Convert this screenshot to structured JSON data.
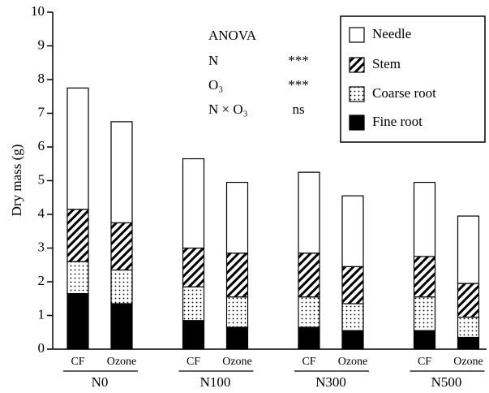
{
  "chart_data": {
    "type": "stacked_bar",
    "y_label": "Dry mass (g)",
    "categories": [
      "CF",
      "Ozone",
      "CF",
      "Ozone",
      "CF",
      "Ozone",
      "CF",
      "Ozone"
    ],
    "groups": [
      "N0",
      "N100",
      "N300",
      "N500"
    ],
    "series": [
      {
        "name": "Fine root",
        "color": "#000000",
        "pattern": "solid",
        "values": [
          1.65,
          1.35,
          0.85,
          0.65,
          0.65,
          0.55,
          0.55,
          0.35
        ]
      },
      {
        "name": "Coarse root",
        "color": "#ffffff",
        "pattern": "dots",
        "values": [
          0.95,
          1.0,
          1.0,
          0.9,
          0.9,
          0.8,
          1.0,
          0.6
        ]
      },
      {
        "name": "Stem",
        "color": "#ffffff",
        "pattern": "hatch",
        "values": [
          1.55,
          1.4,
          1.15,
          1.3,
          1.3,
          1.1,
          1.2,
          1.0
        ]
      },
      {
        "name": "Needle",
        "color": "#ffffff",
        "pattern": "solid",
        "values": [
          3.6,
          3.0,
          2.65,
          2.1,
          2.4,
          2.1,
          2.2,
          2.0
        ]
      }
    ],
    "ylim": [
      0,
      10
    ],
    "yticks": [
      0,
      1,
      2,
      3,
      4,
      5,
      6,
      7,
      8,
      9,
      10
    ],
    "annotation": {
      "title": "ANOVA",
      "rows": [
        [
          "N",
          "***"
        ],
        [
          "O₃",
          "***"
        ],
        [
          "N × O₃",
          "ns"
        ]
      ]
    },
    "legend_position": "upper right"
  }
}
